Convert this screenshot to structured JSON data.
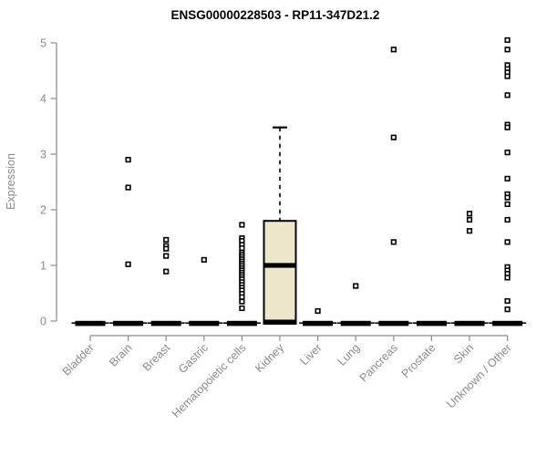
{
  "title": "ENSG00000228503 - RP11-347D21.2",
  "chart_data": {
    "type": "boxplot",
    "title": "ENSG00000228503 - RP11-347D21.2",
    "xlabel": "",
    "ylabel": "Expression",
    "ylim": [
      0,
      5
    ],
    "yticks": [
      0,
      1,
      2,
      3,
      4,
      5
    ],
    "grid": false,
    "legend": null,
    "marker_shape": "open-square",
    "colors": {
      "axis": "#8a8a8a",
      "tick_text": "#8a8a8a",
      "title_text": "#000000",
      "marker": "#000000",
      "box_fill": "#ece7cb",
      "box_stroke": "#000000"
    },
    "categories": [
      "Bladder",
      "Brain",
      "Breast",
      "Gastric",
      "Hematopoietic cells",
      "Kidney",
      "Liver",
      "Lung",
      "Pancreas",
      "Prostate",
      "Skin",
      "Unknown / Other"
    ],
    "series": [
      {
        "category": "Bladder",
        "zero_bar": true,
        "box": null,
        "points": []
      },
      {
        "category": "Brain",
        "zero_bar": true,
        "box": null,
        "points": [
          2.9,
          2.4,
          1.02
        ]
      },
      {
        "category": "Breast",
        "zero_bar": true,
        "box": null,
        "points": [
          1.46,
          1.35,
          1.3,
          1.17,
          0.89
        ]
      },
      {
        "category": "Gastric",
        "zero_bar": true,
        "box": null,
        "points": [
          1.1
        ]
      },
      {
        "category": "Hematopoietic cells",
        "zero_bar": true,
        "box": null,
        "points": [
          1.73,
          1.49,
          1.44,
          1.37,
          1.31,
          1.23,
          1.19,
          1.15,
          1.11,
          1.07,
          1.03,
          0.99,
          0.95,
          0.91,
          0.87,
          0.83,
          0.79,
          0.75,
          0.7,
          0.65,
          0.6,
          0.55,
          0.49,
          0.43,
          0.35,
          0.23
        ]
      },
      {
        "category": "Kidney",
        "zero_bar": false,
        "box": {
          "q1": 0,
          "median": 1.0,
          "q3": 1.8,
          "whisker_low": 0,
          "whisker_high": 3.48
        },
        "points": []
      },
      {
        "category": "Liver",
        "zero_bar": true,
        "box": null,
        "points": [
          0.18
        ]
      },
      {
        "category": "Lung",
        "zero_bar": true,
        "box": null,
        "points": [
          0.63
        ]
      },
      {
        "category": "Pancreas",
        "zero_bar": true,
        "box": null,
        "points": [
          4.88,
          3.3,
          1.42
        ]
      },
      {
        "category": "Prostate",
        "zero_bar": true,
        "box": null,
        "points": []
      },
      {
        "category": "Skin",
        "zero_bar": true,
        "box": null,
        "points": [
          1.93,
          1.82,
          1.62
        ]
      },
      {
        "category": "Unknown / Other",
        "zero_bar": true,
        "box": null,
        "points": [
          5.05,
          4.88,
          4.6,
          4.53,
          4.47,
          4.4,
          4.06,
          3.53,
          3.48,
          3.03,
          2.56,
          2.28,
          2.22,
          2.1,
          1.82,
          1.42,
          0.97,
          0.91,
          0.85,
          0.78,
          0.36,
          0.21
        ]
      }
    ]
  }
}
